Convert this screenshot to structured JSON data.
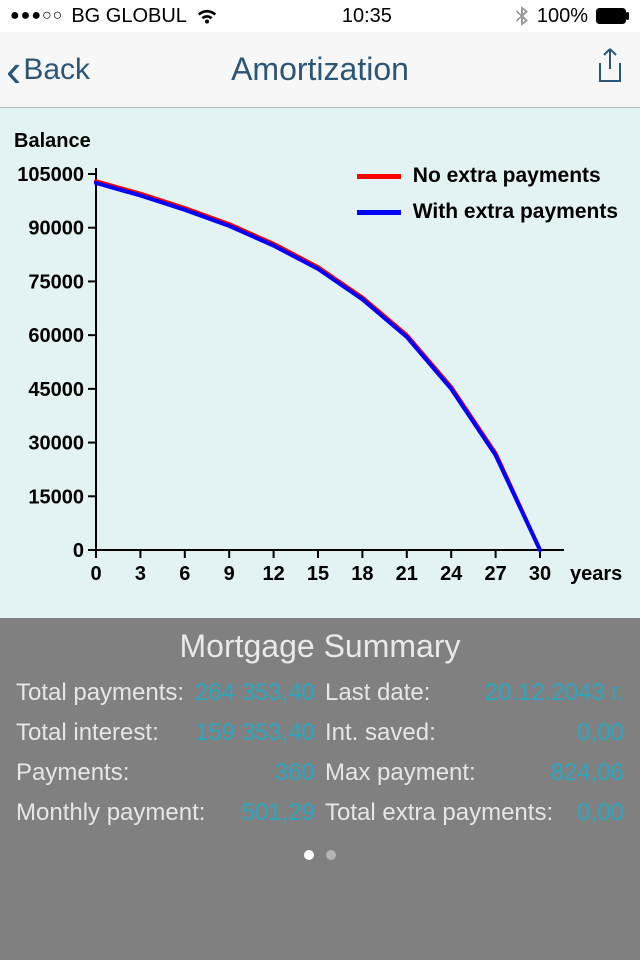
{
  "status_bar": {
    "signal_dots": "●●●○○",
    "carrier": "BG GLOBUL",
    "time": "10:35",
    "battery_pct": "100%"
  },
  "nav": {
    "back_label": "Back",
    "title": "Amortization"
  },
  "chart": {
    "type": "line",
    "ylabel": "Balance",
    "xlabel": "years",
    "background_color": "#e3f3f3",
    "axis_color": "#000000",
    "axis_width": 2,
    "tick_fontsize": 20,
    "tick_fontweight": 700,
    "xlim": [
      0,
      30
    ],
    "ylim": [
      0,
      105000
    ],
    "xtick_step": 3,
    "ytick_step": 15000,
    "xticks": [
      0,
      3,
      6,
      9,
      12,
      15,
      18,
      21,
      24,
      27,
      30
    ],
    "yticks": [
      0,
      15000,
      30000,
      45000,
      60000,
      75000,
      90000,
      105000
    ],
    "series": [
      {
        "name": "No extra payments",
        "color": "#ff0000",
        "line_width": 4,
        "data": [
          [
            0,
            103000
          ],
          [
            3,
            99500
          ],
          [
            6,
            95500
          ],
          [
            9,
            91000
          ],
          [
            12,
            85500
          ],
          [
            15,
            79000
          ],
          [
            18,
            70500
          ],
          [
            21,
            60000
          ],
          [
            24,
            45500
          ],
          [
            27,
            27000
          ],
          [
            30,
            0
          ]
        ]
      },
      {
        "name": "With extra payments",
        "color": "#0000ff",
        "line_width": 4,
        "data": [
          [
            0,
            102500
          ],
          [
            3,
            99000
          ],
          [
            6,
            95000
          ],
          [
            9,
            90500
          ],
          [
            12,
            85000
          ],
          [
            15,
            78500
          ],
          [
            18,
            70000
          ],
          [
            21,
            59500
          ],
          [
            24,
            45000
          ],
          [
            27,
            26500
          ],
          [
            30,
            0
          ]
        ]
      }
    ],
    "legend": {
      "fontsize": 21,
      "fontweight": 700,
      "position": "top-right"
    }
  },
  "summary": {
    "title": "Mortgage Summary",
    "label_color": "#e6e6e6",
    "value_color": "#2aa7c0",
    "background_color": "#808080",
    "left": [
      {
        "label": "Total payments:",
        "value": "264 353,40"
      },
      {
        "label": "Total interest:",
        "value": "159 353,40"
      },
      {
        "label": "Payments:",
        "value": "360"
      },
      {
        "label": "Monthly payment:",
        "value": "501,29"
      }
    ],
    "right": [
      {
        "label": "Last date:",
        "value": "20.12.2043 г."
      },
      {
        "label": "Int. saved:",
        "value": "0,00"
      },
      {
        "label": "Max payment:",
        "value": "824,06"
      },
      {
        "label": "Total extra payments:",
        "value": "0,00"
      }
    ]
  },
  "pager": {
    "count": 2,
    "active": 0
  }
}
